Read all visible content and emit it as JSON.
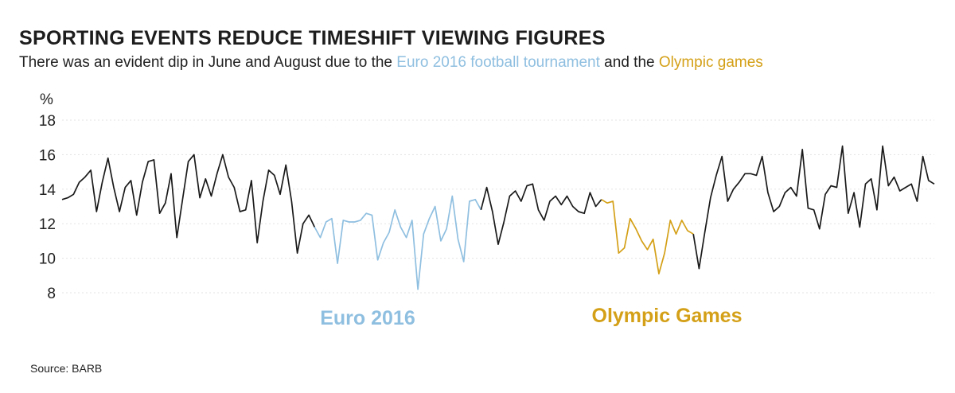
{
  "header": {
    "title": "SPORTING EVENTS REDUCE TIMESHIFT VIEWING FIGURES",
    "subtitle_pre": "There was an evident dip in June and August  due to the ",
    "subtitle_euro": "Euro 2016 football tournament",
    "subtitle_mid": " and the ",
    "subtitle_olympic": "Olympic games"
  },
  "footer": {
    "source": "Source: BARB"
  },
  "colors": {
    "default_line": "#1a1a1a",
    "euro": "#8fbfe0",
    "olympic": "#d4a017",
    "grid": "#e3e3e3"
  },
  "chart_data": {
    "type": "line",
    "title": "SPORTING EVENTS REDUCE TIMESHIFT VIEWING FIGURES",
    "ylabel": "%",
    "xlabel": "",
    "ylim": [
      8,
      18
    ],
    "yticks": [
      8,
      10,
      12,
      14,
      16,
      18
    ],
    "grid": true,
    "annotations": [
      "Euro 2016",
      "Olympic Games"
    ],
    "segments": [
      {
        "name": "Euro 2016",
        "start": 44,
        "end": 73
      },
      {
        "name": "Olympic Games",
        "start": 94,
        "end": 110
      }
    ],
    "values": [
      13.4,
      13.5,
      13.7,
      14.4,
      14.7,
      15.1,
      12.7,
      14.4,
      15.8,
      14.1,
      12.7,
      14.1,
      14.5,
      12.5,
      14.4,
      15.6,
      15.7,
      12.6,
      13.2,
      14.9,
      11.2,
      13.4,
      15.6,
      16.0,
      13.5,
      14.6,
      13.6,
      14.9,
      16.0,
      14.7,
      14.1,
      12.7,
      12.8,
      14.5,
      10.9,
      13.3,
      15.1,
      14.8,
      13.7,
      15.4,
      13.3,
      10.3,
      12.0,
      12.5,
      11.8,
      11.2,
      12.1,
      12.3,
      9.7,
      12.2,
      12.1,
      12.1,
      12.2,
      12.6,
      12.5,
      9.9,
      10.9,
      11.5,
      12.8,
      11.8,
      11.2,
      12.2,
      8.2,
      11.4,
      12.3,
      13.0,
      11.0,
      11.7,
      13.6,
      11.1,
      9.8,
      13.3,
      13.4,
      12.8,
      14.1,
      12.7,
      10.8,
      12.1,
      13.6,
      13.9,
      13.3,
      14.2,
      14.3,
      12.8,
      12.2,
      13.3,
      13.6,
      13.1,
      13.6,
      13.0,
      12.7,
      12.6,
      13.8,
      13.0,
      13.4,
      13.2,
      13.3,
      10.3,
      10.6,
      12.3,
      11.7,
      11.0,
      10.5,
      11.1,
      9.1,
      10.3,
      12.2,
      11.4,
      12.2,
      11.6,
      11.4,
      9.4,
      11.5,
      13.5,
      14.8,
      15.9,
      13.3,
      14.0,
      14.4,
      14.9,
      14.9,
      14.8,
      15.9,
      13.8,
      12.7,
      13.0,
      13.8,
      14.1,
      13.6,
      16.3,
      12.9,
      12.8,
      11.7,
      13.7,
      14.2,
      14.1,
      16.5,
      12.6,
      13.8,
      11.8,
      14.3,
      14.6,
      12.8,
      16.5,
      14.2,
      14.7,
      13.9,
      14.1,
      14.3,
      13.3,
      15.9,
      14.5,
      14.3
    ]
  }
}
